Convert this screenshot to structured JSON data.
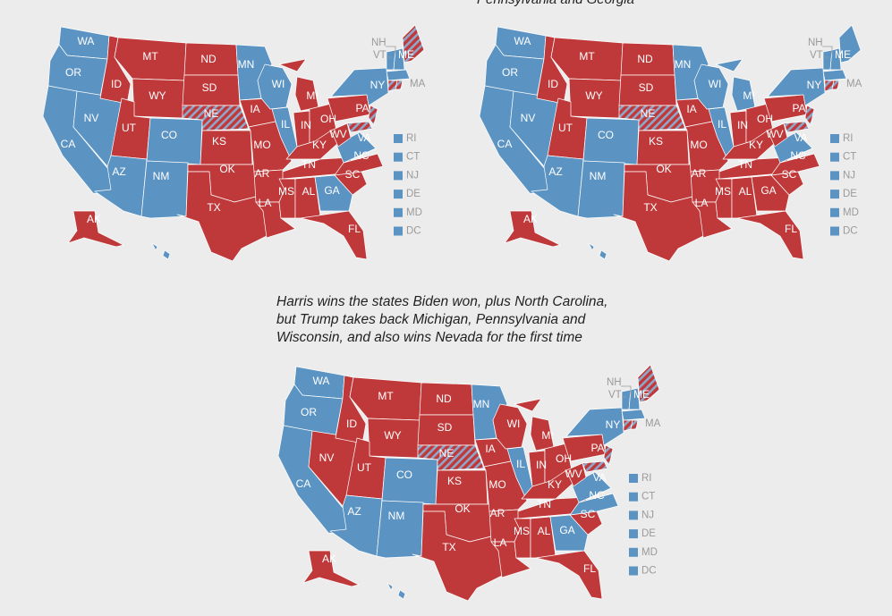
{
  "captions": {
    "top_right_partial": "Pennsylvania and Georgia",
    "bottom": [
      "Harris wins the states Biden won, plus North Carolina,",
      "but Trump takes back Michigan, Pennsylvania and",
      "Wisconsin, and also wins Nevada for the first time"
    ]
  },
  "colors": {
    "democrat": "#5b93c2",
    "republican": "#c0393a",
    "split_hatch": "#8fa7c9",
    "small_state_label": "#9a9a9a"
  },
  "small_state_legend": [
    "RI",
    "CT",
    "NJ",
    "DE",
    "MD",
    "DC"
  ],
  "scenarios": [
    {
      "id": "map-top-left",
      "results": {
        "WA": "D",
        "OR": "D",
        "CA": "D",
        "NV": "D",
        "ID": "R",
        "MT": "R",
        "WY": "R",
        "UT": "R",
        "AZ": "D",
        "CO": "D",
        "NM": "D",
        "ND": "R",
        "SD": "R",
        "NE": "split",
        "KS": "R",
        "OK": "R",
        "TX": "R",
        "MN": "D",
        "IA": "R",
        "MO": "R",
        "AR": "R",
        "LA": "R",
        "WI": "D",
        "IL": "D",
        "MI": "R",
        "IN": "R",
        "OH": "R",
        "KY": "R",
        "TN": "R",
        "MS": "R",
        "AL": "R",
        "GA": "D",
        "FL": "R",
        "SC": "R",
        "NC": "R",
        "VA": "D",
        "WV": "R",
        "PA": "R",
        "NY": "D",
        "ME": "split",
        "MA": "D",
        "NH": "D",
        "VT": "D",
        "AK": "R",
        "HI": "D"
      }
    },
    {
      "id": "map-top-right",
      "results": {
        "WA": "D",
        "OR": "D",
        "CA": "D",
        "NV": "D",
        "ID": "R",
        "MT": "R",
        "WY": "R",
        "UT": "R",
        "AZ": "D",
        "CO": "D",
        "NM": "D",
        "ND": "R",
        "SD": "R",
        "NE": "split",
        "KS": "R",
        "OK": "R",
        "TX": "R",
        "MN": "D",
        "IA": "R",
        "MO": "R",
        "AR": "R",
        "LA": "R",
        "WI": "D",
        "IL": "D",
        "MI": "D",
        "IN": "R",
        "OH": "R",
        "KY": "R",
        "TN": "R",
        "MS": "R",
        "AL": "R",
        "GA": "R",
        "FL": "R",
        "SC": "R",
        "NC": "R",
        "VA": "D",
        "WV": "R",
        "PA": "R",
        "NY": "D",
        "ME": "D",
        "MA": "D",
        "NH": "D",
        "VT": "D",
        "AK": "R",
        "HI": "D"
      }
    },
    {
      "id": "map-bottom",
      "results": {
        "WA": "D",
        "OR": "D",
        "CA": "D",
        "NV": "R",
        "ID": "R",
        "MT": "R",
        "WY": "R",
        "UT": "R",
        "AZ": "D",
        "CO": "D",
        "NM": "D",
        "ND": "R",
        "SD": "R",
        "NE": "split",
        "KS": "R",
        "OK": "R",
        "TX": "R",
        "MN": "D",
        "IA": "R",
        "MO": "R",
        "AR": "R",
        "LA": "R",
        "WI": "R",
        "IL": "D",
        "MI": "R",
        "IN": "R",
        "OH": "R",
        "KY": "R",
        "TN": "R",
        "MS": "R",
        "AL": "R",
        "GA": "D",
        "FL": "R",
        "SC": "R",
        "NC": "D",
        "VA": "D",
        "WV": "R",
        "PA": "R",
        "NY": "D",
        "ME": "split",
        "MA": "D",
        "NH": "D",
        "VT": "D",
        "AK": "R",
        "HI": "D"
      }
    }
  ]
}
